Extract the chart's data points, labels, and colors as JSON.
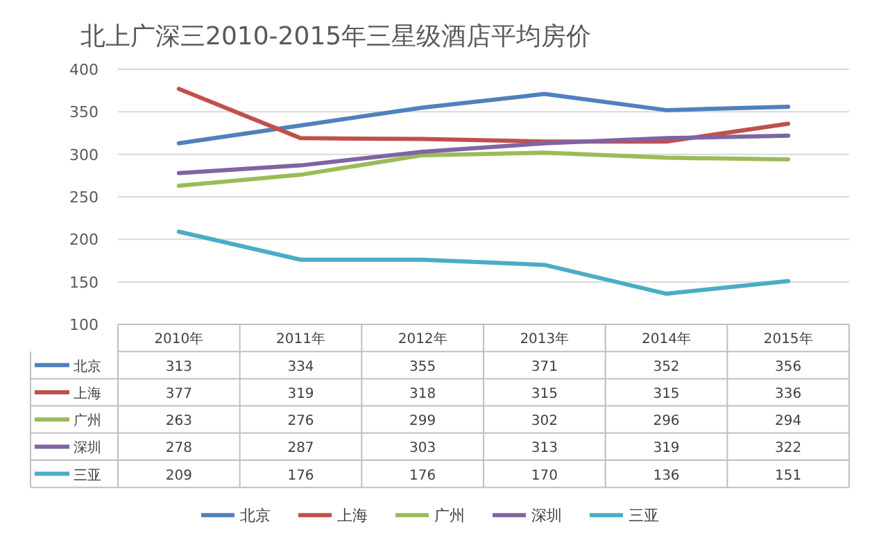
{
  "chart_data": {
    "type": "line",
    "title": "北上广深三2010-2015年三星级酒店平均房价",
    "categories": [
      "2010年",
      "2011年",
      "2012年",
      "2013年",
      "2014年",
      "2015年"
    ],
    "series": [
      {
        "name": "北京",
        "color": "#4f81bd",
        "values": [
          313,
          334,
          355,
          371,
          352,
          356
        ]
      },
      {
        "name": "上海",
        "color": "#c0504d",
        "values": [
          377,
          319,
          318,
          315,
          315,
          336
        ]
      },
      {
        "name": "广州",
        "color": "#9bbb59",
        "values": [
          263,
          276,
          299,
          302,
          296,
          294
        ]
      },
      {
        "name": "深圳",
        "color": "#8064a2",
        "values": [
          278,
          287,
          303,
          313,
          319,
          322
        ]
      },
      {
        "name": "三亚",
        "color": "#4bacc6",
        "values": [
          209,
          176,
          176,
          170,
          136,
          151
        ]
      }
    ],
    "ylim": [
      100,
      400
    ],
    "yticks": [
      100,
      150,
      200,
      250,
      300,
      350,
      400
    ],
    "grid": "y",
    "legend": "bottom",
    "data_labels": true,
    "marker": "none",
    "line_style": "solid"
  }
}
